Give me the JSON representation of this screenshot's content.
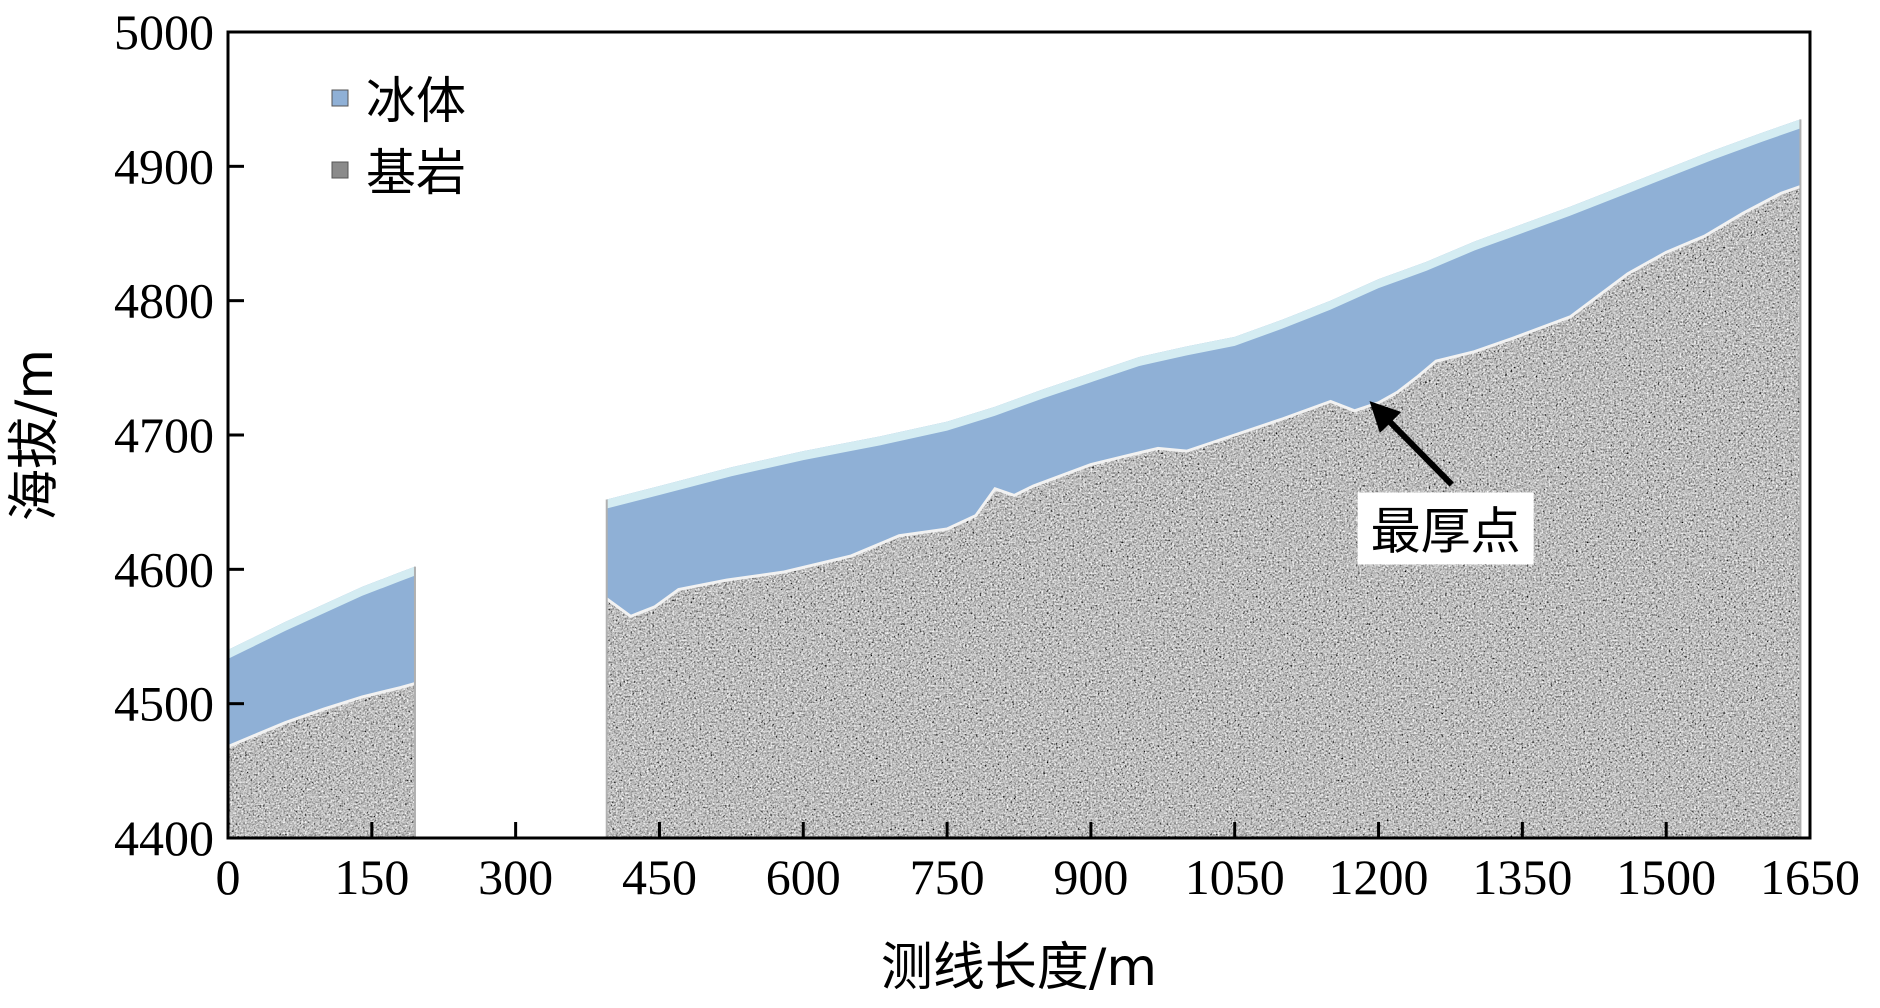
{
  "chart_data": {
    "type": "area",
    "title": "",
    "xlabel": "测线长度/m",
    "ylabel": "海拔/m",
    "xlim": [
      0,
      1650
    ],
    "ylim": [
      4400,
      5000
    ],
    "x_ticks": [
      0,
      150,
      300,
      450,
      600,
      750,
      900,
      1050,
      1200,
      1350,
      1500,
      1650
    ],
    "y_ticks": [
      4400,
      4500,
      4600,
      4700,
      4800,
      4900,
      5000
    ],
    "grid": false,
    "legend": {
      "placement": "top-left",
      "entries": [
        {
          "name": "冰体",
          "color": "#8fb0d6"
        },
        {
          "name": "基岩",
          "color": "#8a8a8a"
        }
      ]
    },
    "colors": {
      "ice": "#8fb0d6",
      "ice_surface": "#d4ecf2",
      "bedrock": "#8a8a8a"
    },
    "series": [
      {
        "name": "冰体",
        "segments": [
          {
            "x": [
              0,
              20,
              60,
              100,
              140,
              180,
              195
            ],
            "y": [
              4540,
              4547,
              4561,
              4574,
              4587,
              4598,
              4602
            ]
          },
          {
            "x": [
              395,
              450,
              525,
              600,
              680,
              750,
              800,
              850,
              900,
              950,
              1000,
              1050,
              1100,
              1150,
              1200,
              1250,
              1300,
              1350,
              1400,
              1450,
              1500,
              1550,
              1600,
              1640
            ],
            "y": [
              4652,
              4662,
              4676,
              4688,
              4699,
              4710,
              4721,
              4734,
              4746,
              4758,
              4766,
              4773,
              4786,
              4800,
              4816,
              4829,
              4844,
              4857,
              4870,
              4884,
              4898,
              4912,
              4925,
              4935
            ]
          }
        ]
      },
      {
        "name": "基岩",
        "segments": [
          {
            "x": [
              0,
              30,
              60,
              100,
              140,
              180,
              195
            ],
            "y": [
              4468,
              4477,
              4486,
              4496,
              4505,
              4512,
              4515
            ]
          },
          {
            "x": [
              395,
              420,
              445,
              470,
              520,
              580,
              650,
              700,
              750,
              780,
              800,
              820,
              840,
              870,
              900,
              940,
              970,
              1000,
              1050,
              1100,
              1150,
              1175,
              1200,
              1220,
              1240,
              1260,
              1300,
              1340,
              1400,
              1460,
              1500,
              1540,
              1580,
              1620,
              1640
            ],
            "y": [
              4578,
              4565,
              4572,
              4585,
              4592,
              4598,
              4610,
              4625,
              4630,
              4640,
              4660,
              4655,
              4662,
              4670,
              4678,
              4685,
              4690,
              4688,
              4700,
              4712,
              4725,
              4718,
              4724,
              4732,
              4743,
              4755,
              4762,
              4772,
              4788,
              4820,
              4836,
              4848,
              4865,
              4880,
              4885
            ]
          }
        ]
      }
    ],
    "annotations": [
      {
        "text": "最厚点",
        "x": 1270,
        "y": 4620,
        "arrow_to": {
          "x": 1195,
          "y": 4722
        }
      }
    ]
  }
}
